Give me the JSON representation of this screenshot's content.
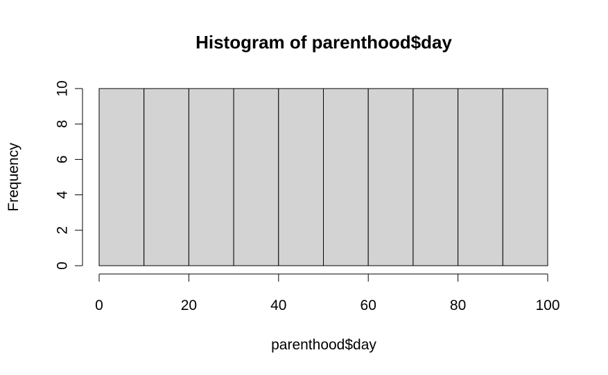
{
  "chart_data": {
    "type": "bar",
    "title": "Histogram of parenthood$day",
    "xlabel": "parenthood$day",
    "ylabel": "Frequency",
    "bins": [
      {
        "from": 0,
        "to": 10,
        "count": 10
      },
      {
        "from": 10,
        "to": 20,
        "count": 10
      },
      {
        "from": 20,
        "to": 30,
        "count": 10
      },
      {
        "from": 30,
        "to": 40,
        "count": 10
      },
      {
        "from": 40,
        "to": 50,
        "count": 10
      },
      {
        "from": 50,
        "to": 60,
        "count": 10
      },
      {
        "from": 60,
        "to": 70,
        "count": 10
      },
      {
        "from": 70,
        "to": 80,
        "count": 10
      },
      {
        "from": 80,
        "to": 90,
        "count": 10
      },
      {
        "from": 90,
        "to": 100,
        "count": 10
      }
    ],
    "xlim": [
      0,
      100
    ],
    "ylim": [
      0,
      10
    ],
    "x_ticks": [
      0,
      20,
      40,
      60,
      80,
      100
    ],
    "y_ticks": [
      0,
      2,
      4,
      6,
      8,
      10
    ],
    "bar_color": "#d3d3d3",
    "border_color": "#000000",
    "grid": false,
    "legend": "none"
  }
}
